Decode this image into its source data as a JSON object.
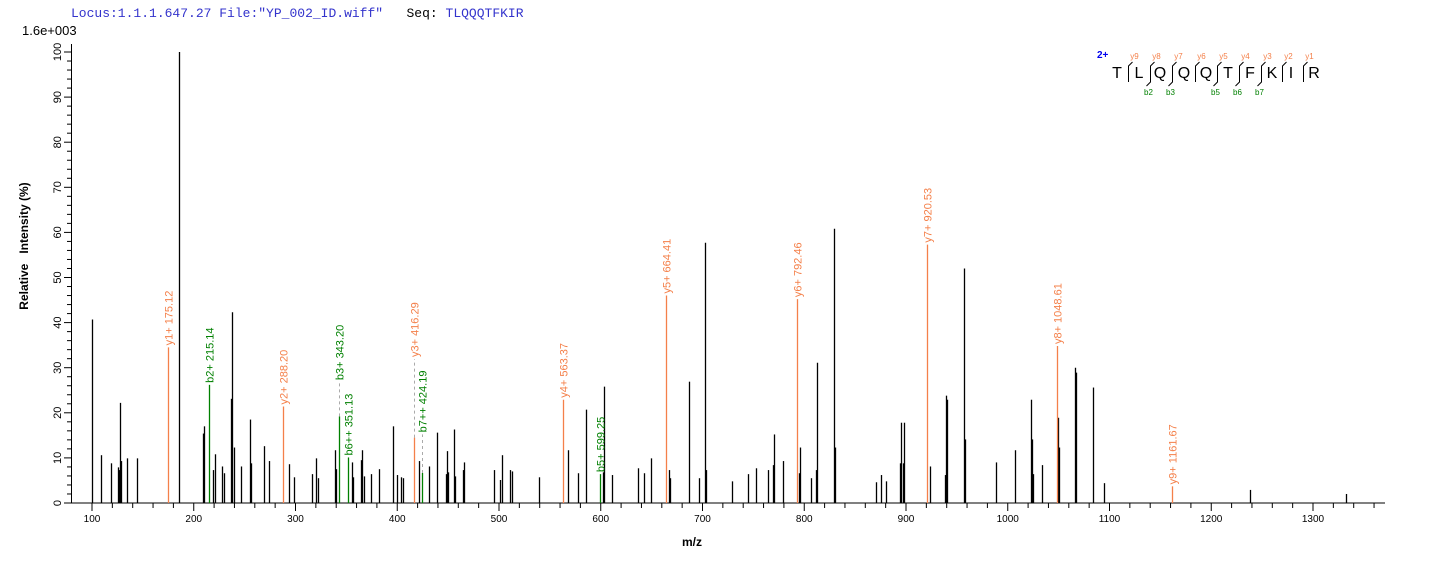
{
  "header": {
    "locus_label": "Locus:1.1.1.647.27",
    "file_label": "File:\"YP_002_ID.wiff\"",
    "seq_prefix": "Seq:",
    "seq_value": "TLQQQTFKIR",
    "scale": "1.6e+003"
  },
  "colors": {
    "y_ion": "#f4804a",
    "b_ion": "#008000",
    "peak": "#000000",
    "charge": "#0000ee",
    "header": "#3333cc"
  },
  "peptide": {
    "charge": "2+",
    "residues": [
      "T",
      "L",
      "Q",
      "Q",
      "Q",
      "T",
      "F",
      "K",
      "I",
      "R"
    ],
    "y_labels": [
      "y9",
      "y8",
      "y7",
      "y6",
      "y5",
      "y4",
      "y3",
      "y2",
      "y1"
    ],
    "b_labels": [
      null,
      "b2",
      "b3",
      null,
      "b5",
      "b6",
      "b7",
      null,
      null
    ]
  },
  "chart_data": {
    "type": "bar",
    "xlabel": "m/z",
    "ylabel": "Relative   Intensity (%)",
    "xlim": [
      80,
      1380
    ],
    "ylim": [
      0,
      100
    ],
    "xticks": [
      100,
      200,
      300,
      400,
      500,
      600,
      700,
      800,
      900,
      1000,
      1100,
      1200,
      1300
    ],
    "yticks": [
      0,
      10,
      20,
      30,
      40,
      50,
      60,
      70,
      80,
      90,
      100
    ],
    "grid": false,
    "peaks": [
      [
        100.0,
        40.7
      ],
      [
        108.8,
        10.6
      ],
      [
        118.7,
        8.8
      ],
      [
        125.6,
        7.9
      ],
      [
        126.5,
        7.3
      ],
      [
        127.5,
        22.2
      ],
      [
        128.5,
        9.3
      ],
      [
        134.4,
        9.9
      ],
      [
        144.2,
        9.9
      ],
      [
        185.5,
        100
      ],
      [
        209.1,
        15.4
      ],
      [
        210.1,
        17.0
      ],
      [
        218.9,
        7.3
      ],
      [
        220.9,
        10.8
      ],
      [
        227.8,
        8.1
      ],
      [
        229.8,
        6.6
      ],
      [
        236.6,
        23.1
      ],
      [
        237.6,
        42.3
      ],
      [
        239.6,
        12.3
      ],
      [
        246.4,
        8.1
      ],
      [
        255.3,
        18.5
      ],
      [
        256.3,
        8.8
      ],
      [
        269.0,
        12.6
      ],
      [
        274.0,
        9.3
      ],
      [
        293.6,
        8.6
      ],
      [
        298.5,
        5.7
      ],
      [
        316.2,
        6.4
      ],
      [
        320.1,
        9.9
      ],
      [
        322.1,
        5.5
      ],
      [
        338.8,
        11.7
      ],
      [
        339.8,
        7.5
      ],
      [
        355.5,
        9.0
      ],
      [
        356.5,
        5.7
      ],
      [
        364.4,
        9.5
      ],
      [
        365.4,
        11.7
      ],
      [
        367.3,
        5.9
      ],
      [
        374.2,
        6.4
      ],
      [
        382.1,
        7.5
      ],
      [
        395.8,
        17.0
      ],
      [
        399.8,
        6.2
      ],
      [
        403.7,
        5.7
      ],
      [
        405.7,
        5.5
      ],
      [
        421.5,
        9.3
      ],
      [
        431.3,
        8.1
      ],
      [
        439.2,
        15.6
      ],
      [
        447.5,
        6.4
      ],
      [
        448.5,
        11.5
      ],
      [
        449.9,
        6.8
      ],
      [
        455.8,
        16.3
      ],
      [
        456.8,
        5.9
      ],
      [
        464.6,
        7.3
      ],
      [
        465.6,
        9.0
      ],
      [
        495.1,
        7.3
      ],
      [
        501.0,
        5.1
      ],
      [
        503.0,
        10.6
      ],
      [
        510.8,
        7.3
      ],
      [
        512.8,
        7.0
      ],
      [
        539.3,
        5.7
      ],
      [
        567.8,
        11.7
      ],
      [
        577.7,
        6.6
      ],
      [
        585.5,
        20.7
      ],
      [
        602.2,
        6.8
      ],
      [
        603.2,
        25.8
      ],
      [
        611.1,
        6.2
      ],
      [
        636.6,
        7.7
      ],
      [
        642.5,
        6.6
      ],
      [
        649.4,
        9.9
      ],
      [
        667.1,
        7.3
      ],
      [
        668.1,
        5.5
      ],
      [
        686.8,
        26.9
      ],
      [
        696.6,
        5.5
      ],
      [
        702.5,
        57.7
      ],
      [
        703.5,
        7.3
      ],
      [
        728.8,
        4.8
      ],
      [
        744.5,
        6.4
      ],
      [
        752.6,
        7.7
      ],
      [
        764.4,
        7.3
      ],
      [
        769.3,
        8.4
      ],
      [
        770.3,
        15.2
      ],
      [
        779.1,
        9.3
      ],
      [
        794.8,
        6.6
      ],
      [
        795.8,
        12.3
      ],
      [
        806.6,
        5.5
      ],
      [
        811.5,
        7.3
      ],
      [
        812.5,
        31.1
      ],
      [
        829.2,
        60.8
      ],
      [
        830.2,
        12.3
      ],
      [
        870.5,
        4.6
      ],
      [
        875.4,
        6.2
      ],
      [
        880.3,
        4.8
      ],
      [
        894.1,
        8.8
      ],
      [
        895.1,
        17.8
      ],
      [
        897.0,
        8.8
      ],
      [
        898.0,
        17.8
      ],
      [
        923.6,
        8.1
      ],
      [
        938.3,
        6.2
      ],
      [
        939.3,
        23.8
      ],
      [
        940.3,
        22.9
      ],
      [
        957.0,
        52.0
      ],
      [
        958.0,
        14.1
      ],
      [
        988.5,
        9.0
      ],
      [
        1007.1,
        11.7
      ],
      [
        1022.8,
        22.9
      ],
      [
        1023.8,
        14.1
      ],
      [
        1024.8,
        6.4
      ],
      [
        1033.7,
        8.4
      ],
      [
        1049.4,
        18.9
      ],
      [
        1050.4,
        12.3
      ],
      [
        1066.1,
        30.0
      ],
      [
        1067.1,
        28.9
      ],
      [
        1083.8,
        25.6
      ],
      [
        1094.6,
        4.4
      ],
      [
        1238.1,
        2.9
      ],
      [
        1332.4,
        2.0
      ]
    ],
    "annotated": [
      {
        "label": "y1+ 175.12",
        "mz": 175.12,
        "intensity": 34.5,
        "ion": "y"
      },
      {
        "label": "b2+ 215.14",
        "mz": 215.14,
        "intensity": 26.2,
        "ion": "b"
      },
      {
        "label": "y2+ 288.20",
        "mz": 288.2,
        "intensity": 21.4,
        "ion": "y"
      },
      {
        "label": "b3+ 343.20",
        "mz": 343.2,
        "intensity": 19.2,
        "ion": "b"
      },
      {
        "label": "b6++ 351.13",
        "mz": 351.13,
        "intensity": 10.1,
        "ion": "b"
      },
      {
        "label": "y3+ 416.29",
        "mz": 416.29,
        "intensity": 14.5,
        "ion": "y"
      },
      {
        "label": "b7++ 424.19",
        "mz": 424.19,
        "intensity": 6.8,
        "ion": "b",
        "dashed": true
      },
      {
        "label": "y4+ 563.37",
        "mz": 563.37,
        "intensity": 22.9,
        "ion": "y"
      },
      {
        "label": "b5+ 599.25",
        "mz": 599.25,
        "intensity": 6.4,
        "ion": "b"
      },
      {
        "label": "y5+ 664.41",
        "mz": 664.41,
        "intensity": 46.0,
        "ion": "y"
      },
      {
        "label": "y6+ 792.46",
        "mz": 792.46,
        "intensity": 45.2,
        "ion": "y"
      },
      {
        "label": "y7+ 920.53",
        "mz": 920.53,
        "intensity": 57.3,
        "ion": "y"
      },
      {
        "label": "y8+ 1048.61",
        "mz": 1048.61,
        "intensity": 34.8,
        "ion": "y"
      },
      {
        "label": "y9+ 1161.67",
        "mz": 1161.67,
        "intensity": 3.7,
        "ion": "y"
      }
    ]
  }
}
